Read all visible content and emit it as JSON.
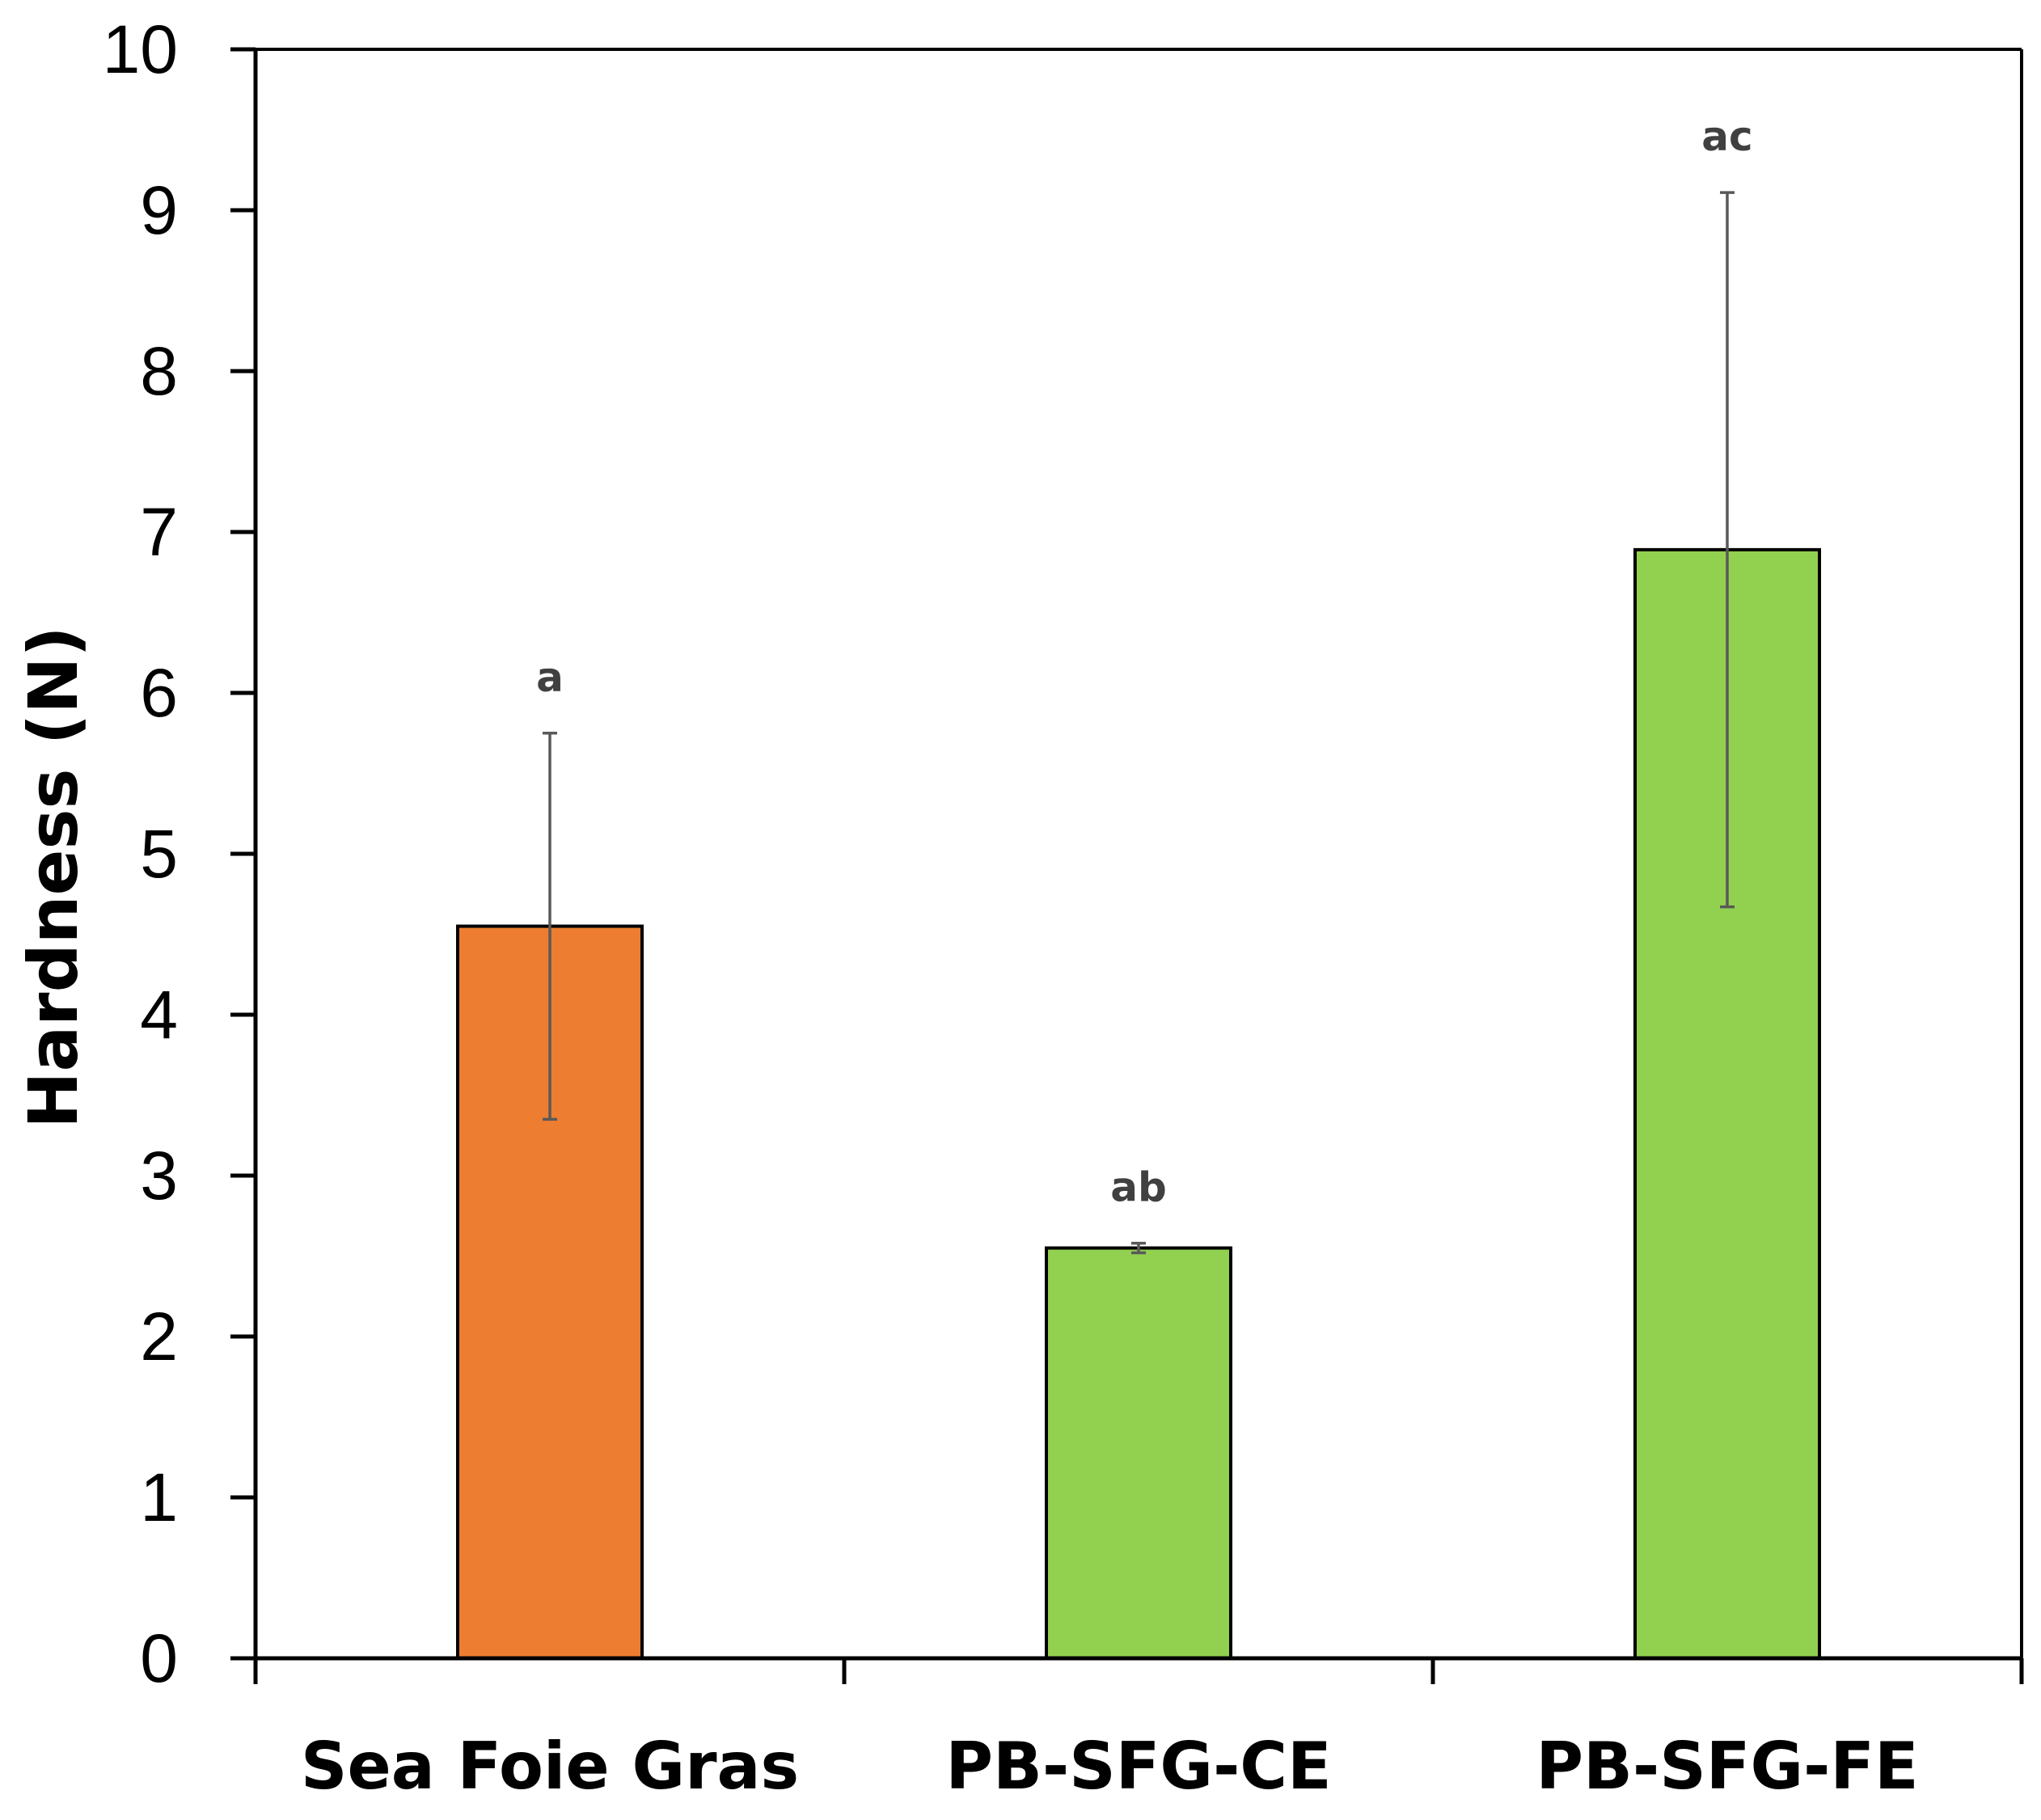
{
  "chart_data": {
    "type": "bar",
    "title": "",
    "xlabel": "",
    "ylabel": "Hardness (N)",
    "ylim": [
      0,
      10
    ],
    "yticks": [
      "0",
      "1",
      "2",
      "3",
      "4",
      "5",
      "6",
      "7",
      "8",
      "9",
      "10"
    ],
    "grid": false,
    "categories": [
      "Sea Foie Gras",
      "PB-SFG-CE",
      "PB-SFG-FE"
    ],
    "values": [
      4.55,
      2.55,
      6.89
    ],
    "errors": [
      1.2,
      0.03,
      2.22
    ],
    "significance_labels": [
      "a",
      "ab",
      "ac"
    ],
    "colors": [
      "#ED7D31",
      "#92D050",
      "#92D050"
    ]
  }
}
